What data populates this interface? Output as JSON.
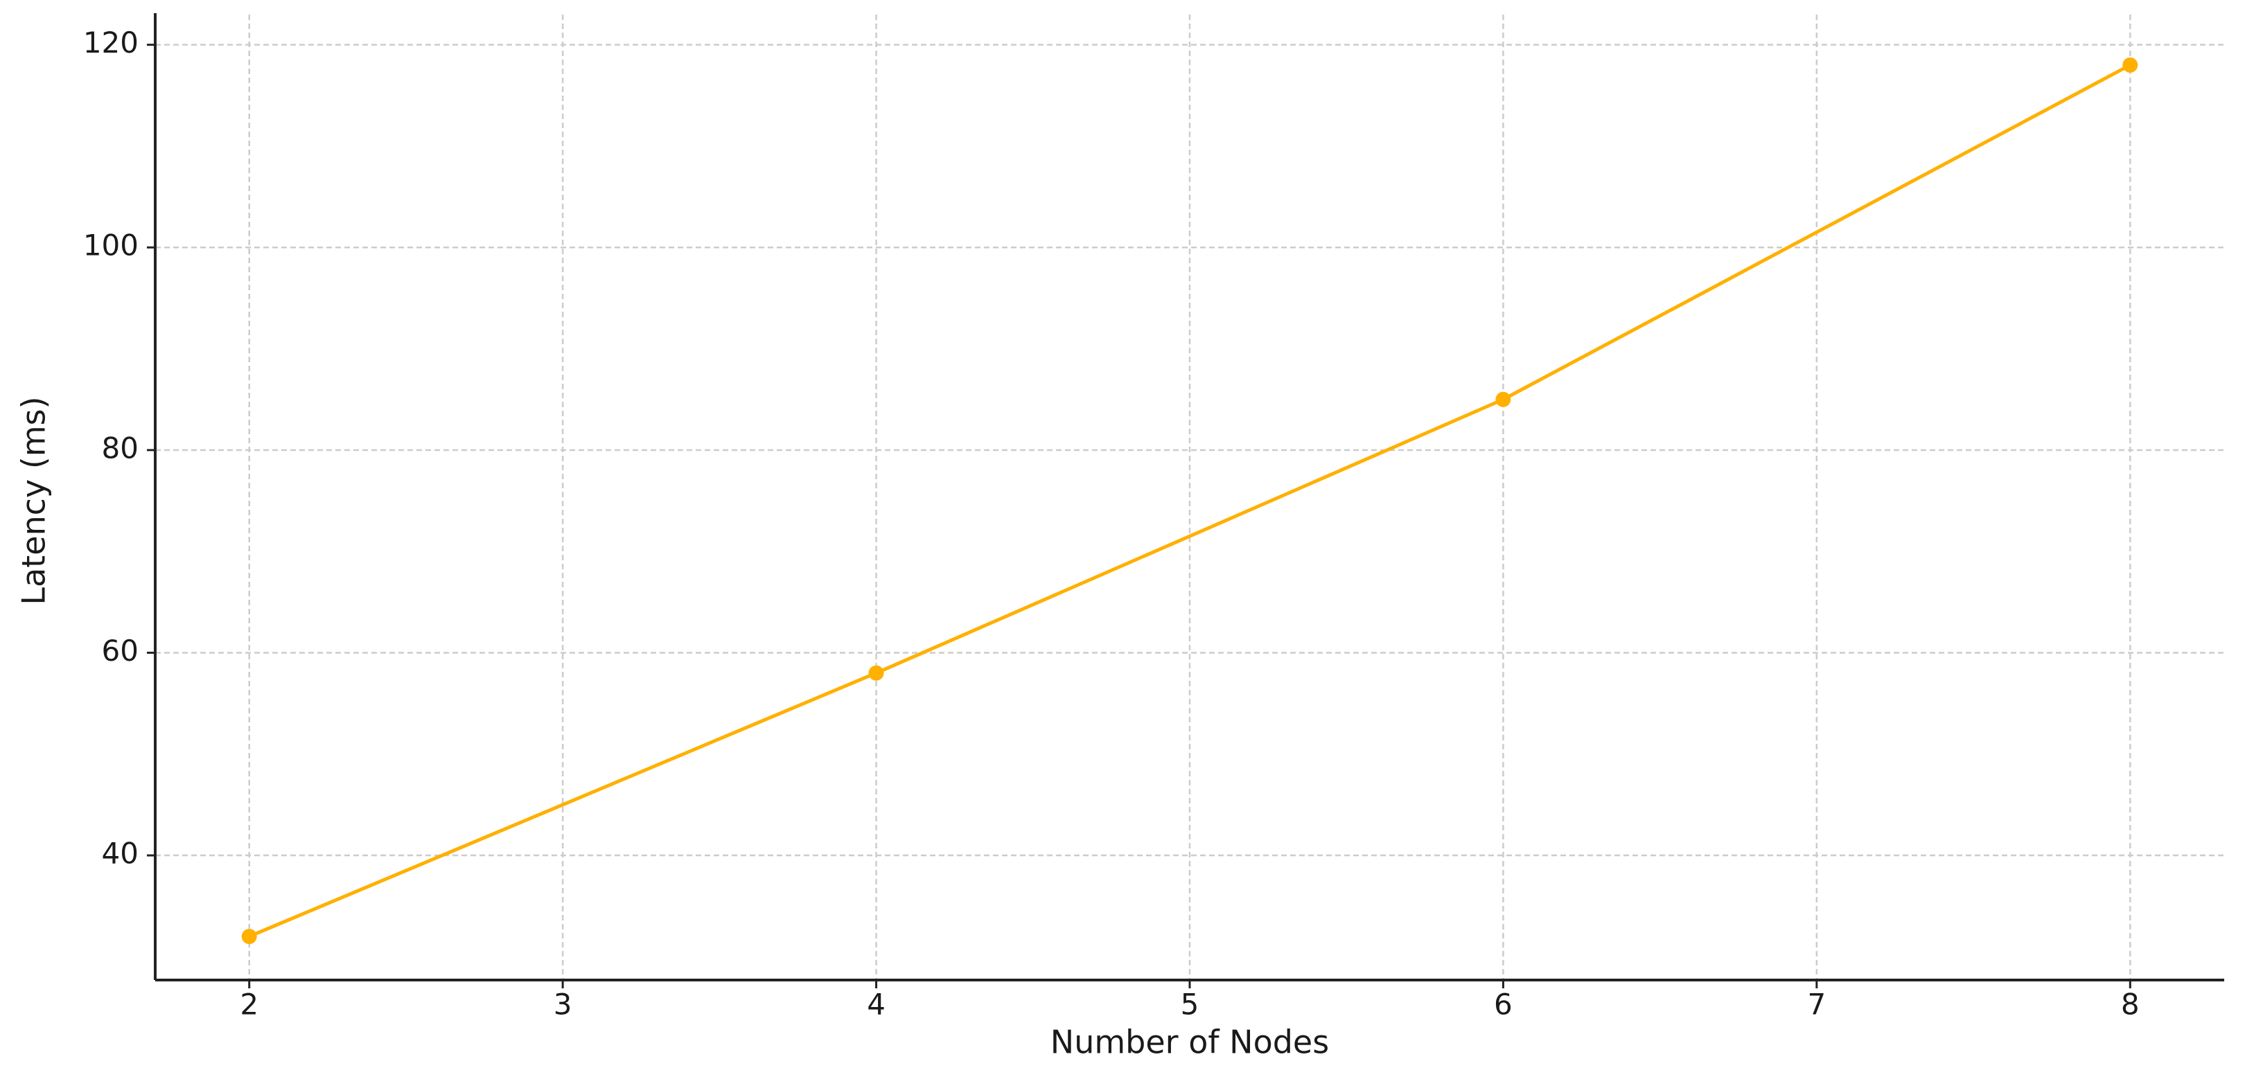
{
  "chart_data": {
    "type": "line",
    "x_label": "Number of Nodes",
    "y_label": "Latency (ms)",
    "x": [
      2,
      4,
      6,
      8
    ],
    "values": [
      32,
      58,
      85,
      118
    ],
    "color": "#ffb000",
    "xlim": [
      1.7,
      8.3
    ],
    "ylim": [
      27.7,
      122.3
    ],
    "xticks": [
      2,
      3,
      4,
      5,
      6,
      7,
      8
    ],
    "yticks": [
      40,
      60,
      80,
      100,
      120
    ],
    "grid": true
  }
}
